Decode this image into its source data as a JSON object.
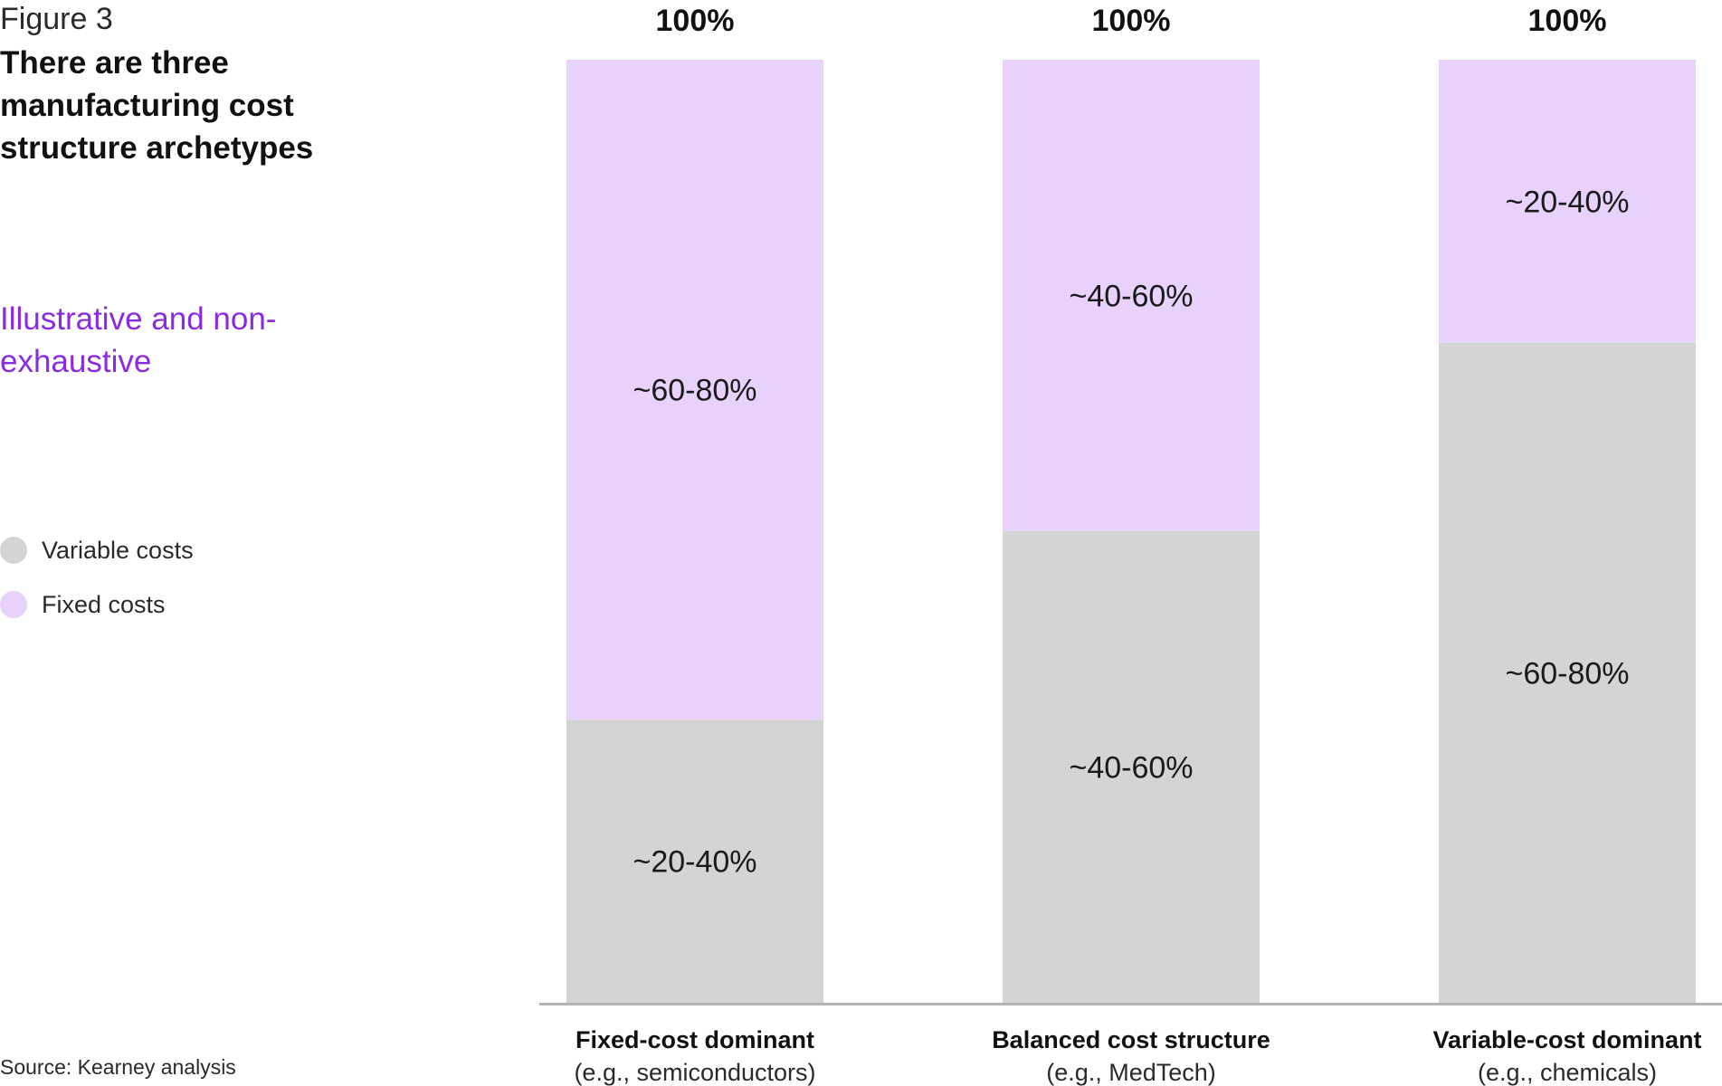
{
  "figure_label": "Figure 3",
  "title": "There are three manufacturing cost structure archetypes",
  "subtitle": "Illustrative and non-exhaustive",
  "source": "Source: Kearney analysis",
  "colors": {
    "variable": "#d4d4d4",
    "fixed": "#e8d2fc",
    "accent": "#8a2be2",
    "axis": "#b3b3b3"
  },
  "legend": [
    {
      "name": "Variable costs",
      "color": "#d4d4d4"
    },
    {
      "name": "Fixed costs",
      "color": "#e8d2fc"
    }
  ],
  "chart_data": {
    "type": "bar",
    "stacked": true,
    "categories": [
      "Fixed-cost dominant",
      "Balanced cost structure",
      "Variable-cost dominant"
    ],
    "category_sublabels": [
      "(e.g., semiconductors)",
      "(e.g., MedTech)",
      "(e.g., chemicals)"
    ],
    "totals": [
      "100%",
      "100%",
      "100%"
    ],
    "series": [
      {
        "name": "Variable costs",
        "values": [
          30,
          50,
          70
        ],
        "labels": [
          "~20-40%",
          "~40-60%",
          "~60-80%"
        ]
      },
      {
        "name": "Fixed costs",
        "values": [
          70,
          50,
          30
        ],
        "labels": [
          "~60-80%",
          "~40-60%",
          "~20-40%"
        ]
      }
    ],
    "ylim": [
      0,
      100
    ],
    "grid": false,
    "legend_position": "left"
  }
}
